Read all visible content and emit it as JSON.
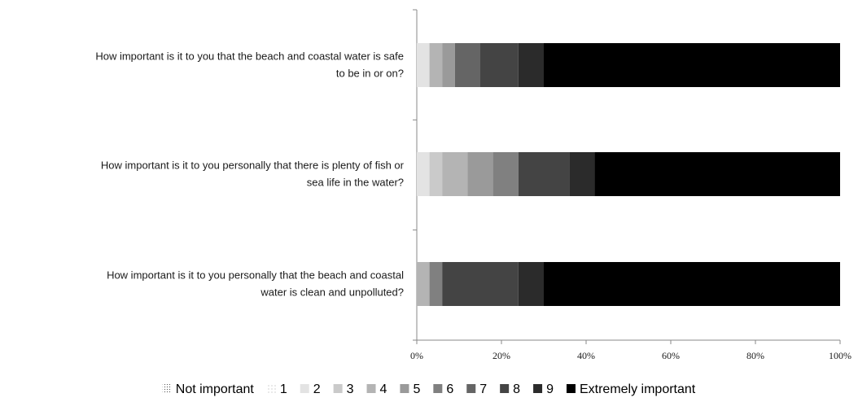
{
  "chart_data": {
    "type": "bar",
    "orientation": "horizontal",
    "stacked": "percent",
    "categories": [
      [
        "How important is it to you that the beach and coastal water is safe",
        "to be in or on?"
      ],
      [
        "How important is it to you personally that there is plenty of fish or",
        "sea life in the water?"
      ],
      [
        "How important is it to you personally that the beach and coastal",
        "water is clean and unpolluted?"
      ]
    ],
    "series": [
      {
        "name": "Not important",
        "color": "#ffffff",
        "pattern": "dots-dense",
        "values": [
          0,
          0,
          0
        ]
      },
      {
        "name": "1",
        "color": "#ffffff",
        "pattern": "dots-sparse",
        "values": [
          0,
          0,
          0
        ]
      },
      {
        "name": "2",
        "color": "#e3e3e3",
        "values": [
          3,
          3,
          0
        ]
      },
      {
        "name": "3",
        "color": "#cacaca",
        "values": [
          0,
          3,
          0
        ]
      },
      {
        "name": "4",
        "color": "#b4b4b4",
        "values": [
          3,
          6,
          3
        ]
      },
      {
        "name": "5",
        "color": "#9a9a9a",
        "values": [
          3,
          6,
          0
        ]
      },
      {
        "name": "6",
        "color": "#808080",
        "values": [
          0,
          6,
          3
        ]
      },
      {
        "name": "7",
        "color": "#656565",
        "values": [
          6,
          0,
          0
        ]
      },
      {
        "name": "8",
        "color": "#444444",
        "values": [
          9,
          12,
          18
        ]
      },
      {
        "name": "9",
        "color": "#2b2b2b",
        "values": [
          6,
          6,
          6
        ]
      },
      {
        "name": "Extremely important",
        "color": "#000000",
        "values": [
          70,
          58,
          70
        ]
      }
    ],
    "xlim": [
      0,
      100
    ],
    "xticks": [
      "0%",
      "20%",
      "40%",
      "60%",
      "80%",
      "100%"
    ],
    "legend_position": "bottom",
    "grid": false,
    "title": "",
    "xlabel": "",
    "ylabel": ""
  }
}
